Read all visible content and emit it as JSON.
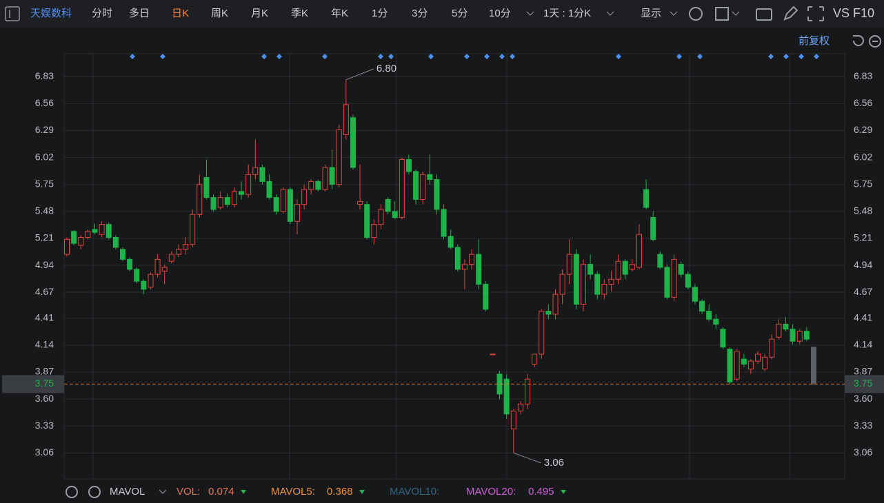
{
  "toolbar": {
    "symbol": "天娱数科",
    "periods": [
      "分时",
      "多日",
      "日K",
      "周K",
      "月K",
      "季K",
      "年K",
      "1分",
      "3分",
      "5分",
      "10分"
    ],
    "active": 2,
    "range": "1天 : 1分K",
    "display": "显示",
    "compare": "VS F10"
  },
  "adjust": "前复权",
  "chart_data": {
    "type": "candlestick",
    "up_color": "#e8453c",
    "down_color": "#1fb34a",
    "current_color": "#5c6068",
    "ylim": [
      2.8,
      7.06
    ],
    "yticks": [
      6.83,
      6.56,
      6.29,
      6.02,
      5.75,
      5.48,
      5.21,
      4.94,
      4.67,
      4.41,
      4.14,
      3.87,
      {
        "value": 3.6,
        "label": "3.60"
      },
      3.33,
      3.06
    ],
    "grid": true,
    "last": 3.75,
    "high_label": {
      "value": 6.8,
      "label": "6.80"
    },
    "low_label": 3.06,
    "series": {
      "open": [
        5.05,
        5.28,
        5.14,
        5.22,
        5.3,
        5.25,
        5.35,
        5.22,
        5.1,
        5.0,
        4.9,
        4.78,
        4.72,
        4.85,
        4.88,
        4.98,
        5.05,
        5.1,
        5.15,
        5.45,
        5.82,
        5.62,
        5.52,
        5.62,
        5.55,
        5.68,
        5.65,
        5.85,
        5.92,
        5.78,
        5.62,
        5.48,
        5.7,
        5.38,
        5.55,
        5.7,
        5.78,
        5.7,
        5.92,
        5.75,
        6.25,
        6.42,
        5.55,
        5.55,
        5.22,
        5.35,
        5.6,
        5.48,
        5.42,
        6.0,
        5.88,
        5.6,
        5.85,
        5.8,
        5.5,
        5.23,
        5.12,
        4.9,
        4.95,
        5.05,
        4.75,
        4.05,
        3.85,
        3.8,
        3.3,
        3.48,
        3.55,
        3.95,
        4.05,
        4.48,
        4.45,
        4.65,
        4.85,
        5.05,
        4.55,
        4.95,
        4.85,
        4.65,
        4.75,
        4.8,
        4.98,
        4.9,
        4.92,
        5.7,
        5.42,
        5.05,
        4.92,
        4.62,
        4.95,
        4.85,
        4.72,
        4.58,
        4.48,
        4.4,
        4.3,
        4.1,
        3.8,
        4.0,
        3.9,
        3.98,
        3.9,
        4.02,
        4.22,
        4.35,
        4.3,
        4.18,
        4.28,
        4.12
      ],
      "high": [
        5.22,
        5.29,
        5.24,
        5.3,
        5.36,
        5.38,
        5.37,
        5.24,
        5.12,
        5.02,
        4.92,
        4.8,
        4.87,
        5.05,
        4.95,
        5.08,
        5.15,
        5.22,
        5.5,
        5.85,
        6.0,
        5.65,
        5.68,
        5.66,
        5.72,
        5.78,
        5.95,
        6.2,
        5.95,
        5.85,
        5.65,
        5.72,
        5.72,
        5.6,
        5.75,
        5.8,
        5.8,
        5.95,
        6.1,
        6.35,
        6.8,
        6.45,
        5.95,
        5.58,
        5.4,
        5.55,
        5.62,
        5.58,
        6.02,
        6.05,
        5.9,
        5.88,
        6.05,
        5.85,
        5.55,
        5.3,
        5.15,
        5.0,
        5.1,
        5.2,
        4.78,
        4.05,
        3.88,
        3.85,
        3.5,
        3.58,
        3.85,
        4.05,
        4.5,
        4.55,
        4.7,
        4.9,
        5.2,
        5.1,
        5.0,
        5.05,
        4.88,
        4.8,
        4.88,
        5.05,
        5.0,
        5.0,
        5.35,
        5.8,
        5.48,
        5.08,
        4.95,
        5.05,
        4.98,
        4.88,
        4.75,
        4.6,
        4.55,
        4.45,
        4.32,
        4.12,
        4.1,
        4.05,
        4.0,
        4.08,
        4.05,
        4.25,
        4.4,
        4.42,
        4.35,
        4.3,
        4.32,
        4.12
      ],
      "low": [
        5.03,
        5.14,
        5.1,
        5.2,
        5.25,
        5.22,
        5.2,
        5.1,
        4.98,
        4.88,
        4.76,
        4.65,
        4.7,
        4.82,
        4.75,
        4.96,
        5.02,
        5.05,
        5.12,
        5.42,
        5.6,
        5.48,
        5.5,
        5.52,
        5.52,
        5.6,
        5.62,
        5.8,
        5.75,
        5.6,
        5.45,
        5.46,
        5.35,
        5.25,
        5.5,
        5.65,
        5.68,
        5.68,
        5.7,
        5.72,
        6.2,
        5.9,
        5.5,
        5.2,
        5.15,
        5.3,
        5.45,
        5.4,
        5.4,
        5.85,
        5.55,
        5.55,
        5.75,
        5.45,
        5.2,
        5.1,
        4.88,
        4.7,
        4.9,
        4.7,
        4.48,
        4.05,
        3.6,
        3.4,
        3.06,
        3.45,
        3.5,
        3.92,
        4.0,
        4.4,
        4.4,
        4.55,
        4.75,
        4.5,
        4.48,
        4.8,
        4.6,
        4.6,
        4.68,
        4.75,
        4.8,
        4.88,
        4.9,
        5.5,
        5.18,
        4.9,
        4.6,
        4.58,
        4.82,
        4.7,
        4.55,
        4.45,
        4.38,
        4.3,
        4.1,
        3.75,
        3.78,
        3.92,
        3.85,
        3.95,
        3.88,
        4.0,
        4.2,
        4.28,
        4.15,
        4.15,
        4.18,
        3.75
      ],
      "close": [
        5.2,
        5.16,
        5.22,
        5.28,
        5.27,
        5.35,
        5.22,
        5.12,
        5.0,
        4.9,
        4.78,
        4.7,
        4.85,
        5.0,
        4.92,
        5.05,
        5.1,
        5.15,
        5.45,
        5.75,
        5.62,
        5.5,
        5.62,
        5.55,
        5.68,
        5.65,
        5.85,
        5.92,
        5.78,
        5.62,
        5.48,
        5.7,
        5.38,
        5.55,
        5.7,
        5.78,
        5.7,
        5.92,
        5.75,
        6.3,
        6.55,
        5.92,
        5.58,
        5.22,
        5.35,
        5.5,
        5.48,
        5.42,
        6.0,
        5.88,
        5.6,
        5.85,
        5.8,
        5.5,
        5.23,
        5.12,
        4.9,
        4.95,
        5.05,
        4.75,
        4.5,
        4.05,
        3.65,
        3.45,
        3.48,
        3.55,
        3.8,
        4.05,
        4.48,
        4.45,
        4.65,
        4.85,
        5.05,
        4.55,
        4.95,
        4.85,
        4.65,
        4.75,
        4.8,
        4.98,
        4.85,
        4.95,
        5.25,
        5.52,
        5.2,
        4.92,
        4.62,
        5.0,
        4.85,
        4.72,
        4.58,
        4.48,
        4.4,
        4.35,
        4.12,
        3.77,
        4.08,
        3.95,
        3.98,
        4.05,
        4.02,
        4.2,
        4.35,
        4.3,
        4.18,
        4.28,
        4.2,
        3.75
      ]
    }
  },
  "indicator": {
    "name": "MAVOL",
    "items": [
      {
        "name": "VOL:",
        "value": 0.074,
        "color": "#e8735a"
      },
      {
        "name": "MAVOL5:",
        "value": 0.368,
        "color": "#f0923a"
      },
      {
        "name": "MAVOL10:",
        "color": "#2f6585"
      },
      {
        "name": "MAVOL20:",
        "value": 0.495,
        "color": "#d05fd8"
      }
    ]
  }
}
